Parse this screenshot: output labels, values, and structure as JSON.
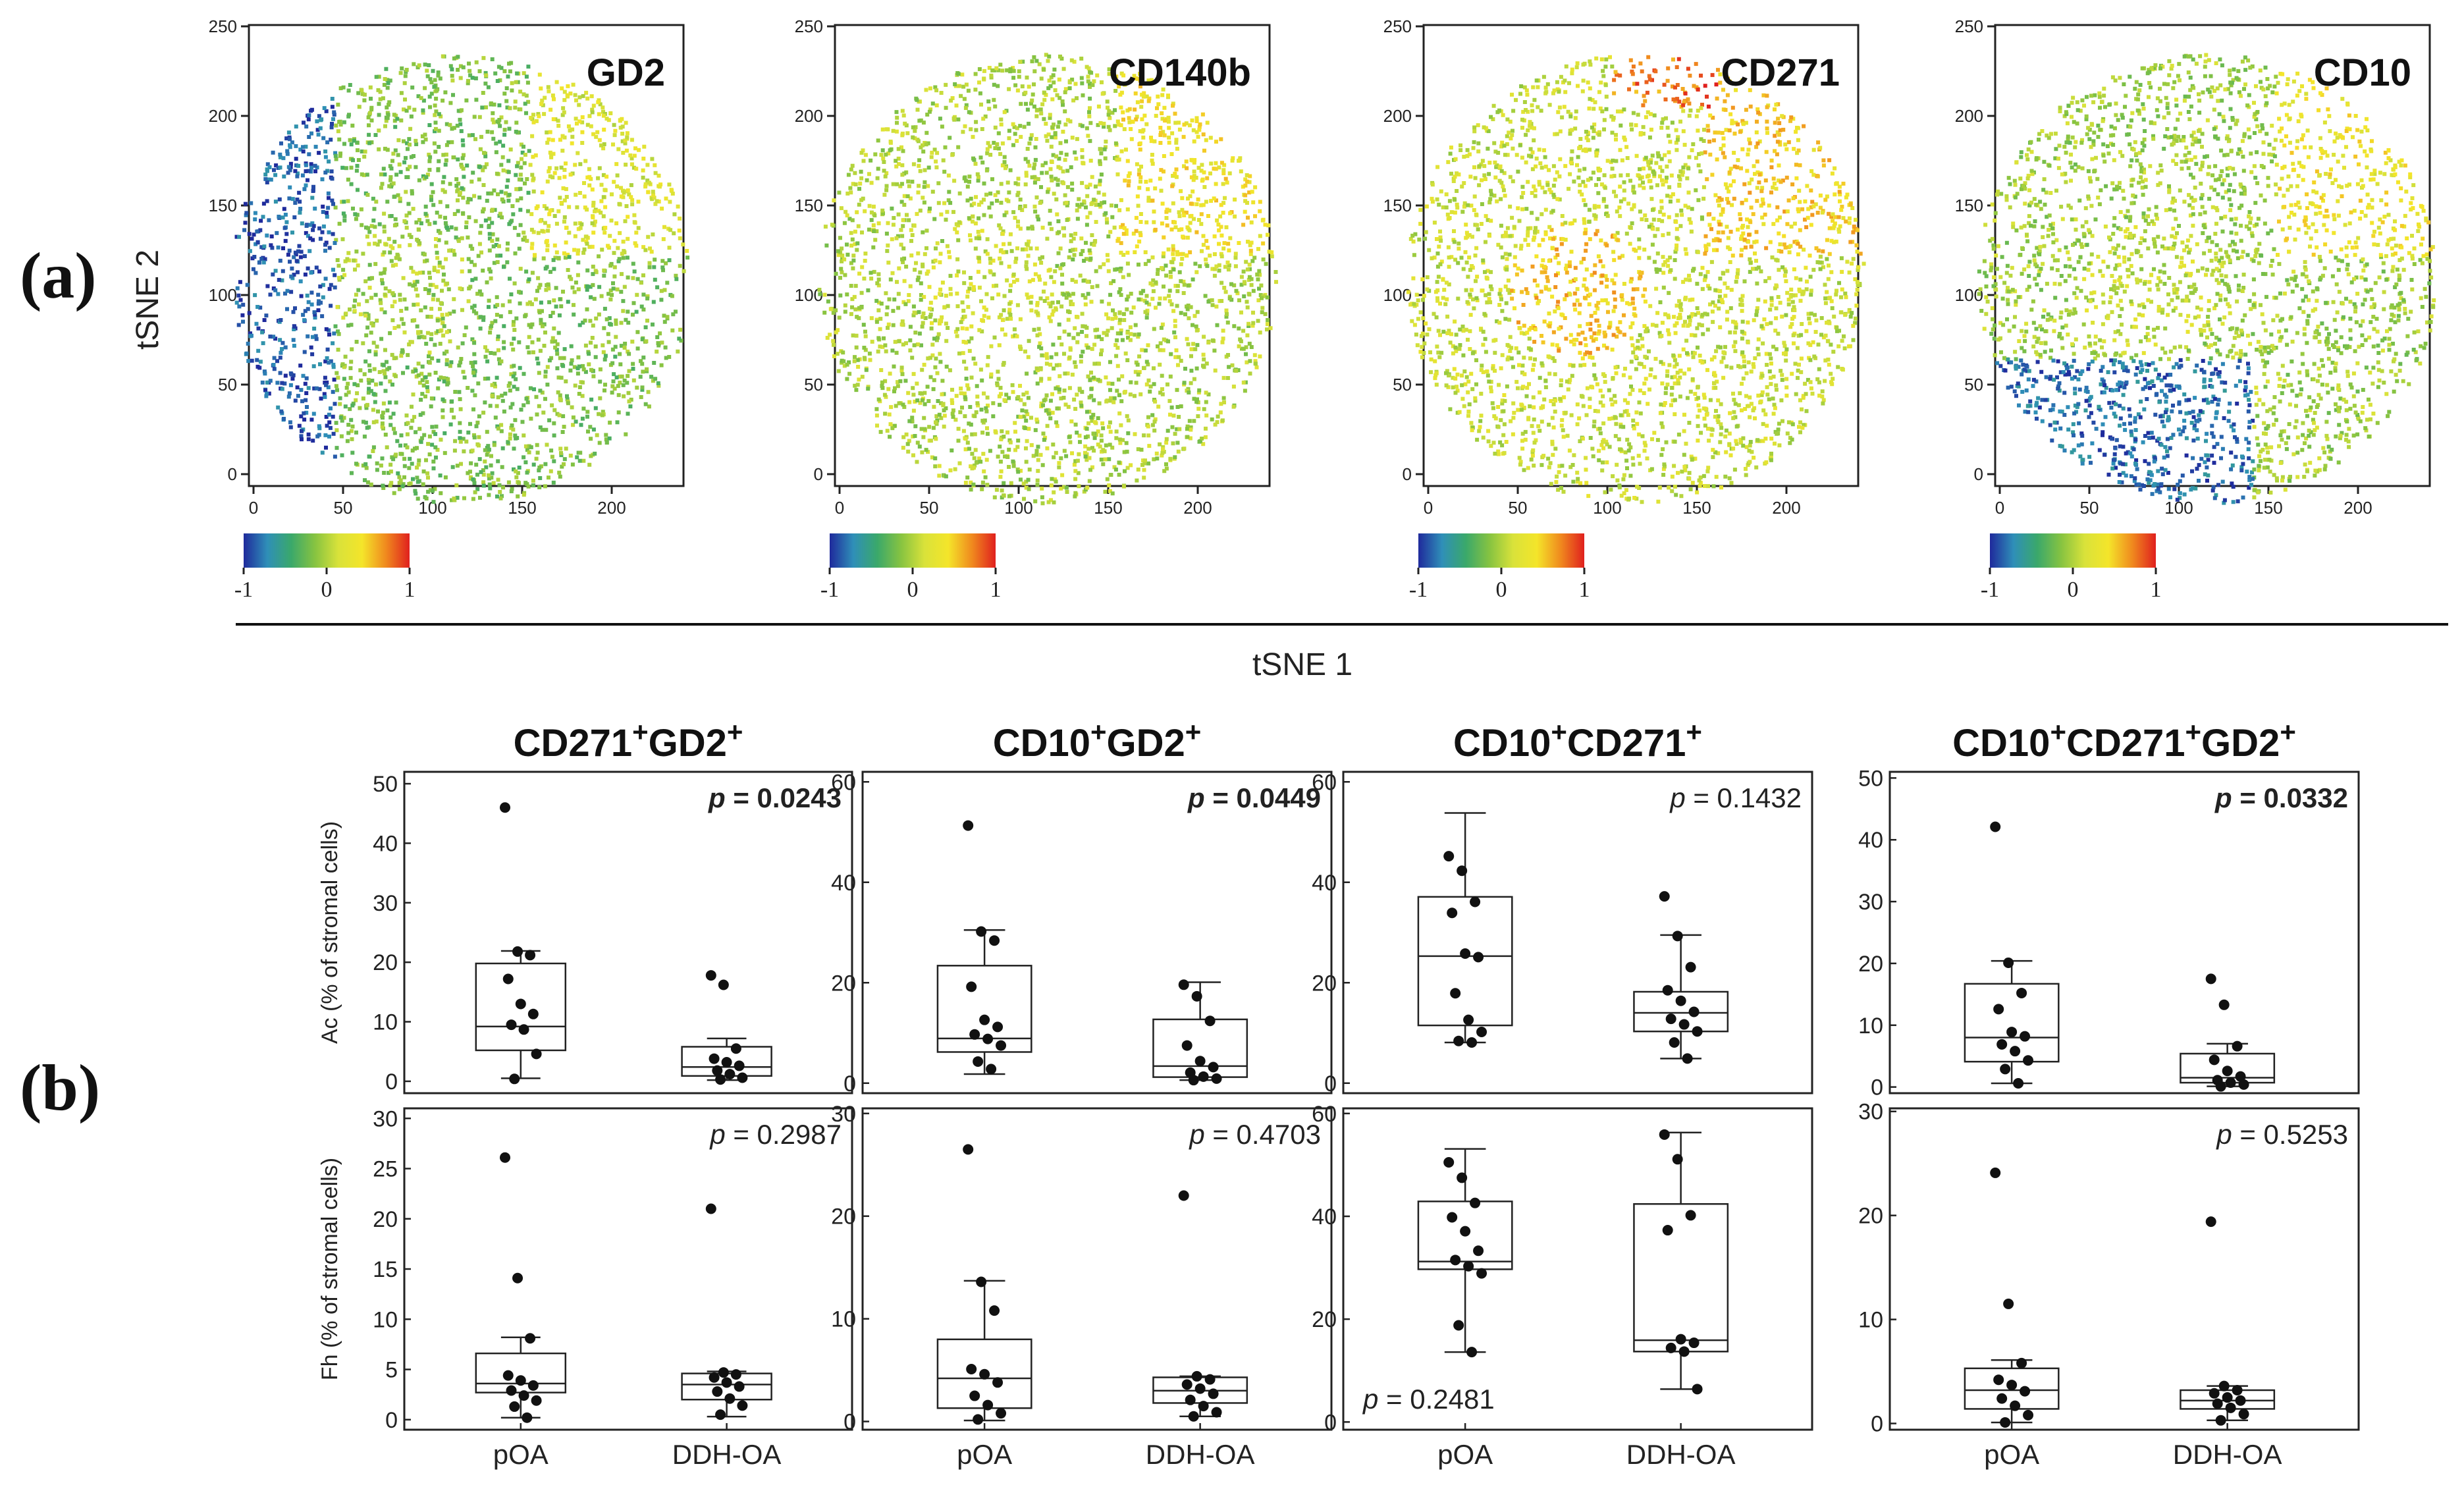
{
  "panel_labels": {
    "a": "(a)",
    "b": "(b)"
  },
  "tsne": {
    "xlabel": "tSNE 1",
    "ylabel": "tSNE 2",
    "x_ticks": [
      "0",
      "50",
      "100",
      "150",
      "200"
    ],
    "y_ticks": [
      "0",
      "50",
      "100",
      "150",
      "200",
      "250"
    ],
    "colorbar_ticks": [
      "-1",
      "0",
      "1"
    ],
    "colorbar_colors": [
      "#1f2a9c",
      "#2f8fb8",
      "#3aa86b",
      "#86c341",
      "#d9e23a",
      "#f4e52a",
      "#f08a1e",
      "#e0201e"
    ],
    "markers": [
      "GD2",
      "CD140b",
      "CD271",
      "CD10"
    ]
  },
  "chart_data": [
    {
      "type": "box",
      "title": "CD271+GD2+",
      "title_parts": {
        "a": "CD271",
        "sup_a": "+",
        "b": "GD2",
        "sup_b": "+"
      },
      "categories": [
        "pOA",
        "DDH-OA"
      ],
      "rows": [
        {
          "ylabel": "Ac (% of  stromal cells)",
          "ylim": [
            -2,
            52
          ],
          "yticks": [
            "0",
            "10",
            "20",
            "30",
            "40",
            "50"
          ],
          "p_label": "p = 0.0243",
          "p_italic": "p",
          "p_rest": " = 0.0243",
          "p_bold": true,
          "groups": [
            {
              "name": "pOA",
              "q1": 5.2,
              "median": 9.2,
              "q3": 19.8,
              "wlo": 0.5,
              "whi": 21.9,
              "points": [
                46,
                21.8,
                21.2,
                17.2,
                13,
                11.3,
                9.5,
                8.7,
                4.6,
                0.4
              ]
            },
            {
              "name": "DDH-OA",
              "q1": 0.9,
              "median": 2.4,
              "q3": 5.8,
              "wlo": 0.2,
              "whi": 7.2,
              "points": [
                17.8,
                16.2,
                5.5,
                3.8,
                3.2,
                2.6,
                1.8,
                1.2,
                0.6,
                0.3
              ]
            }
          ]
        },
        {
          "ylabel": "Fh (% of  stromal cells)",
          "ylim": [
            -1,
            31
          ],
          "yticks": [
            "0",
            "5",
            "10",
            "15",
            "20",
            "25",
            "30"
          ],
          "p_label": "p = 0.2987",
          "p_italic": "p",
          "p_rest": " = 0.2987",
          "p_bold": false,
          "groups": [
            {
              "name": "pOA",
              "q1": 2.7,
              "median": 3.6,
              "q3": 6.6,
              "wlo": 0.2,
              "whi": 8.2,
              "points": [
                26.1,
                14.1,
                8.1,
                4.4,
                3.9,
                3.4,
                2.9,
                2.4,
                1.9,
                1.3,
                0.2
              ]
            },
            {
              "name": "DDH-OA",
              "q1": 2,
              "median": 3.5,
              "q3": 4.6,
              "wlo": 0.3,
              "whi": 4.8,
              "points": [
                21,
                4.7,
                4.5,
                4.2,
                3.7,
                3.3,
                2.8,
                2.1,
                1.4,
                0.5
              ]
            }
          ]
        }
      ]
    },
    {
      "type": "box",
      "title": "CD10+GD2+",
      "title_parts": {
        "a": "CD10",
        "sup_a": "+",
        "b": "GD2",
        "sup_b": "+"
      },
      "categories": [
        "pOA",
        "DDH-OA"
      ],
      "rows": [
        {
          "ylabel": "",
          "ylim": [
            -2,
            62
          ],
          "yticks": [
            "0",
            "20",
            "40",
            "60"
          ],
          "p_label": "p = 0.0449",
          "p_italic": "p",
          "p_rest": " = 0.0449",
          "p_bold": true,
          "groups": [
            {
              "name": "pOA",
              "q1": 6.2,
              "median": 8.9,
              "q3": 23.4,
              "wlo": 1.8,
              "whi": 30.5,
              "points": [
                51.3,
                30.2,
                28.4,
                19.2,
                12.6,
                11.2,
                9.7,
                8.8,
                7.5,
                4.3,
                2.8
              ]
            },
            {
              "name": "DDH-OA",
              "q1": 1.2,
              "median": 3.4,
              "q3": 12.7,
              "wlo": 0.6,
              "whi": 20.1,
              "points": [
                19.6,
                17.3,
                12.4,
                7.5,
                4.4,
                3.2,
                2.1,
                1.3,
                0.9,
                0.6
              ]
            }
          ]
        },
        {
          "ylabel": "",
          "ylim": [
            -0.8,
            30.5
          ],
          "yticks": [
            "0",
            "10",
            "20",
            "30"
          ],
          "p_label": "p = 0.4703",
          "p_italic": "p",
          "p_rest": " = 0.4703",
          "p_bold": false,
          "groups": [
            {
              "name": "pOA",
              "q1": 1.3,
              "median": 4.2,
              "q3": 8,
              "wlo": 0.1,
              "whi": 13.7,
              "points": [
                26.5,
                13.6,
                10.8,
                5.1,
                4.6,
                3.8,
                2.5,
                1.6,
                0.8,
                0.2
              ]
            },
            {
              "name": "DDH-OA",
              "q1": 1.8,
              "median": 3,
              "q3": 4.3,
              "wlo": 0.5,
              "whi": 4.4,
              "points": [
                22,
                4.4,
                4.1,
                3.6,
                3.2,
                2.7,
                2.1,
                1.5,
                0.9,
                0.5
              ]
            }
          ]
        }
      ]
    },
    {
      "type": "box",
      "title": "CD10+CD271+",
      "title_parts": {
        "a": "CD10",
        "sup_a": "+",
        "b": "CD271",
        "sup_b": "+"
      },
      "categories": [
        "pOA",
        "DDH-OA"
      ],
      "rows": [
        {
          "ylabel": "",
          "ylim": [
            -2,
            62
          ],
          "yticks": [
            "0",
            "20",
            "40",
            "60"
          ],
          "p_label": "p = 0.1432",
          "p_italic": "p",
          "p_rest": " = 0.1432",
          "p_bold": false,
          "groups": [
            {
              "name": "pOA",
              "q1": 11.5,
              "median": 25.3,
              "q3": 37.1,
              "wlo": 8.1,
              "whi": 53.8,
              "points": [
                45.2,
                42.3,
                36.1,
                33.9,
                25.8,
                25.1,
                17.9,
                12.6,
                10.2,
                8.4,
                8.1
              ]
            },
            {
              "name": "DDH-OA",
              "q1": 10.3,
              "median": 14,
              "q3": 18.2,
              "wlo": 4.9,
              "whi": 29.5,
              "points": [
                37.2,
                29.3,
                23.1,
                18.5,
                16.4,
                14.2,
                12.8,
                11.7,
                10.3,
                8.1,
                4.9
              ]
            }
          ]
        },
        {
          "ylabel": "",
          "ylim": [
            -1.5,
            61
          ],
          "yticks": [
            "0",
            "20",
            "40",
            "60"
          ],
          "p_label": "p = 0.2481",
          "p_italic": "p",
          "p_rest": " = 0.2481",
          "p_bold": false,
          "groups": [
            {
              "name": "pOA",
              "q1": 29.7,
              "median": 31.2,
              "q3": 42.9,
              "wlo": 13.6,
              "whi": 53.1,
              "points": [
                50.5,
                47.5,
                42.6,
                39.8,
                37.1,
                33.3,
                31.5,
                30.3,
                28.9,
                18.8,
                13.6
              ]
            },
            {
              "name": "DDH-OA",
              "q1": 13.7,
              "median": 15.9,
              "q3": 42.4,
              "wlo": 6.4,
              "whi": 56.3,
              "points": [
                55.9,
                51.1,
                40.2,
                37.3,
                16.1,
                15.4,
                14.4,
                13.7,
                6.4
              ]
            }
          ]
        }
      ]
    },
    {
      "type": "box",
      "title": "CD10+CD271+GD2+",
      "title_parts": {
        "a": "CD10",
        "sup_a": "+",
        "b": "CD271",
        "sup_b": "+",
        "c": "GD2",
        "sup_c": "+"
      },
      "categories": [
        "pOA",
        "DDH-OA"
      ],
      "rows": [
        {
          "ylabel": "",
          "ylim": [
            -1,
            51
          ],
          "yticks": [
            "0",
            "10",
            "20",
            "30",
            "40",
            "50"
          ],
          "p_label": "p = 0.0332",
          "p_italic": "p",
          "p_rest": " = 0.0332",
          "p_bold": true,
          "groups": [
            {
              "name": "pOA",
              "q1": 4.1,
              "median": 8,
              "q3": 16.7,
              "wlo": 0.6,
              "whi": 20.4,
              "points": [
                42.1,
                20.1,
                15.2,
                12.6,
                8.9,
                8.2,
                6.9,
                5.8,
                4.3,
                2.9,
                0.6
              ]
            },
            {
              "name": "DDH-OA",
              "q1": 0.7,
              "median": 1.5,
              "q3": 5.4,
              "wlo": 0.1,
              "whi": 7,
              "points": [
                17.5,
                13.3,
                6.6,
                4.4,
                2.6,
                1.7,
                1.1,
                0.7,
                0.4,
                0.1
              ]
            }
          ]
        },
        {
          "ylabel": "",
          "ylim": [
            -0.6,
            30.3
          ],
          "yticks": [
            "0",
            "10",
            "20",
            "30"
          ],
          "p_label": "p = 0.5253",
          "p_italic": "p",
          "p_rest": " = 0.5253",
          "p_bold": false,
          "groups": [
            {
              "name": "pOA",
              "q1": 1.4,
              "median": 3.2,
              "q3": 5.3,
              "wlo": 0.1,
              "whi": 6.1,
              "points": [
                24.1,
                11.5,
                5.8,
                4.2,
                3.7,
                3.1,
                2.4,
                1.7,
                0.8,
                0.1
              ]
            },
            {
              "name": "DDH-OA",
              "q1": 1.4,
              "median": 2.2,
              "q3": 3.2,
              "wlo": 0.3,
              "whi": 3.6,
              "points": [
                19.4,
                3.6,
                3.2,
                2.9,
                2.5,
                2.2,
                1.9,
                1.5,
                0.9,
                0.3
              ]
            }
          ]
        }
      ]
    }
  ]
}
